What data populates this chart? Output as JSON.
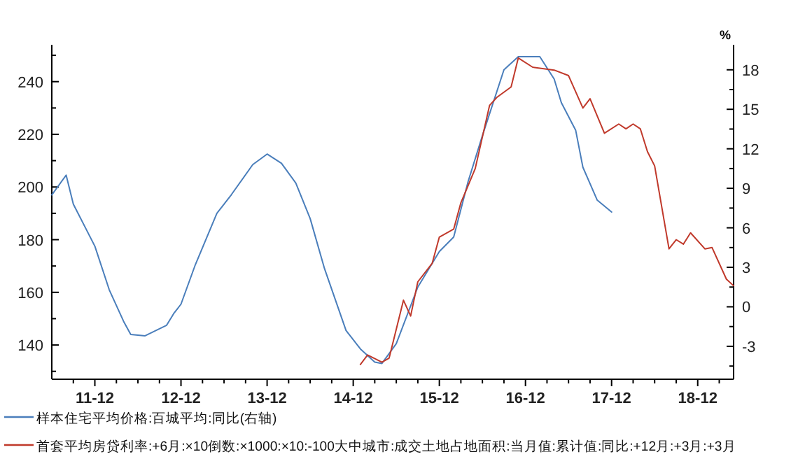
{
  "chart_data": {
    "type": "line",
    "xlim": [
      "2011-06",
      "2019-05"
    ],
    "xticks": [
      {
        "value": "2011-09",
        "label": null
      },
      {
        "value": "2011-12",
        "label": "11-12"
      },
      {
        "value": "2012-03",
        "label": null
      },
      {
        "value": "2012-06",
        "label": null
      },
      {
        "value": "2012-09",
        "label": null
      },
      {
        "value": "2012-12",
        "label": "12-12"
      },
      {
        "value": "2013-03",
        "label": null
      },
      {
        "value": "2013-06",
        "label": null
      },
      {
        "value": "2013-09",
        "label": null
      },
      {
        "value": "2013-12",
        "label": "13-12"
      },
      {
        "value": "2014-03",
        "label": null
      },
      {
        "value": "2014-06",
        "label": null
      },
      {
        "value": "2014-09",
        "label": null
      },
      {
        "value": "2014-12",
        "label": "14-12"
      },
      {
        "value": "2015-03",
        "label": null
      },
      {
        "value": "2015-06",
        "label": null
      },
      {
        "value": "2015-09",
        "label": null
      },
      {
        "value": "2015-12",
        "label": "15-12"
      },
      {
        "value": "2016-03",
        "label": null
      },
      {
        "value": "2016-06",
        "label": null
      },
      {
        "value": "2016-09",
        "label": null
      },
      {
        "value": "2016-12",
        "label": "16-12"
      },
      {
        "value": "2017-03",
        "label": null
      },
      {
        "value": "2017-06",
        "label": null
      },
      {
        "value": "2017-09",
        "label": null
      },
      {
        "value": "2017-12",
        "label": "17-12"
      },
      {
        "value": "2018-03",
        "label": null
      },
      {
        "value": "2018-06",
        "label": null
      },
      {
        "value": "2018-09",
        "label": null
      },
      {
        "value": "2018-12",
        "label": "18-12"
      },
      {
        "value": "2019-03",
        "label": null
      }
    ],
    "ylim": [
      127,
      254
    ],
    "yticks": [
      {
        "value": 130,
        "label": null
      },
      140,
      {
        "value": 150,
        "label": null
      },
      160,
      {
        "value": 170,
        "label": null
      },
      180,
      {
        "value": 190,
        "label": null
      },
      200,
      {
        "value": 210,
        "label": null
      },
      220,
      {
        "value": 230,
        "label": null
      },
      240,
      {
        "value": 250,
        "label": null
      }
    ],
    "y2lim": [
      -5.5,
      19.9
    ],
    "y2label": "%",
    "y2ticks": [
      {
        "value": -4.5,
        "label": null
      },
      -3,
      {
        "value": -1.5,
        "label": null
      },
      0,
      {
        "value": 1.5,
        "label": null
      },
      3,
      {
        "value": 4.5,
        "label": null
      },
      6,
      {
        "value": 7.5,
        "label": null
      },
      9,
      {
        "value": 10.5,
        "label": null
      },
      12,
      {
        "value": 13.5,
        "label": null
      },
      15,
      {
        "value": 16.5,
        "label": null
      },
      18
    ],
    "legend": "bottom",
    "series": [
      {
        "name": "样本住宅平均价格:百城平均:同比(右轴)",
        "color": "#4a7ebb",
        "axis": "y2",
        "x": [
          "2011-06",
          "2011-08",
          "2011-09",
          "2011-12",
          "2012-02",
          "2012-04",
          "2012-05",
          "2012-07",
          "2012-10",
          "2012-11",
          "2012-12",
          "2013-02",
          "2013-05",
          "2013-07",
          "2013-10",
          "2013-12",
          "2014-02",
          "2014-04",
          "2014-06",
          "2014-08",
          "2014-11",
          "2015-01",
          "2015-03",
          "2015-04",
          "2015-06",
          "2015-09",
          "2015-12",
          "2016-02",
          "2016-04",
          "2016-06",
          "2016-09",
          "2016-11",
          "2017-02",
          "2017-04",
          "2017-05",
          "2017-07",
          "2017-08",
          "2017-10",
          "2017-12"
        ],
        "values": [
          8.5,
          10,
          7.8,
          4.6,
          1.3,
          -1.1,
          -2.1,
          -2.2,
          -1.4,
          -0.5,
          0.2,
          3.2,
          7.1,
          8.5,
          10.8,
          11.6,
          10.9,
          9.4,
          6.7,
          2.9,
          -1.8,
          -3.2,
          -4.2,
          -4.3,
          -2.8,
          1.5,
          4.2,
          5.3,
          9.5,
          13,
          18,
          19,
          19,
          17.3,
          15.5,
          13.4,
          10.6,
          8.1,
          7.2
        ]
      },
      {
        "name": "首套平均房贷利率:+6月:×10倒数:×1000:×10:-100大中城市:成交土地占地面积:当月值:累计值:同比:+12月:+3月:+3月",
        "color": "#c0392b",
        "x": [
          "2015-01",
          "2015-02",
          "2015-04",
          "2015-05",
          "2015-07",
          "2015-08",
          "2015-09",
          "2015-11",
          "2015-12",
          "2016-02",
          "2016-03",
          "2016-05",
          "2016-07",
          "2016-08",
          "2016-10",
          "2016-11",
          "2017-01",
          "2017-04",
          "2017-06",
          "2017-08",
          "2017-09",
          "2017-11",
          "2018-01",
          "2018-02",
          "2018-03",
          "2018-04",
          "2018-05",
          "2018-06",
          "2018-08",
          "2018-09",
          "2018-10",
          "2018-11",
          "2019-01",
          "2019-02",
          "2019-04",
          "2019-05"
        ],
        "values": [
          132.6,
          136.2,
          133.5,
          135,
          157,
          151,
          164,
          171,
          181,
          184,
          194,
          207,
          231,
          234,
          238,
          249,
          245.5,
          244.4,
          242.3,
          230,
          233.5,
          220.4,
          223.9,
          222.1,
          223.9,
          222.1,
          213.4,
          208,
          176.5,
          180,
          178.3,
          182.6,
          176.5,
          177,
          165,
          162.5
        ]
      }
    ]
  }
}
